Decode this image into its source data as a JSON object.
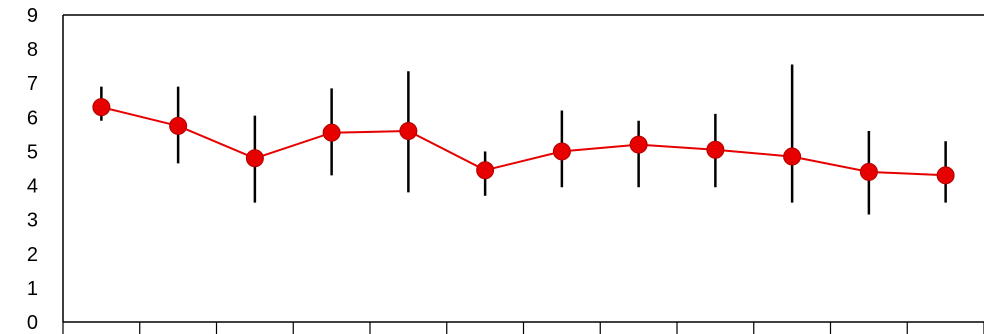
{
  "chart_data": {
    "type": "line",
    "title": "",
    "xlabel": "",
    "ylabel": "",
    "ylim": [
      0,
      9
    ],
    "yticks": [
      0,
      1,
      2,
      3,
      4,
      5,
      6,
      7,
      8,
      9
    ],
    "x_count": 12,
    "grid": false,
    "legend": "none",
    "series": [
      {
        "values": [
          6.3,
          5.75,
          4.8,
          5.55,
          5.6,
          4.45,
          5.0,
          5.2,
          5.05,
          4.85,
          4.4,
          4.3
        ],
        "error_low": [
          5.9,
          4.65,
          3.5,
          4.3,
          3.8,
          3.7,
          3.95,
          3.95,
          3.95,
          3.5,
          3.15,
          3.5
        ],
        "error_high": [
          6.9,
          6.9,
          6.05,
          6.85,
          7.35,
          5.0,
          6.2,
          5.9,
          6.1,
          7.55,
          5.6,
          5.3
        ]
      }
    ],
    "colors": {
      "line": "#e60000",
      "marker": "#e60000",
      "error_bar": "#000000",
      "axis": "#000000",
      "frame": "#000000"
    }
  }
}
